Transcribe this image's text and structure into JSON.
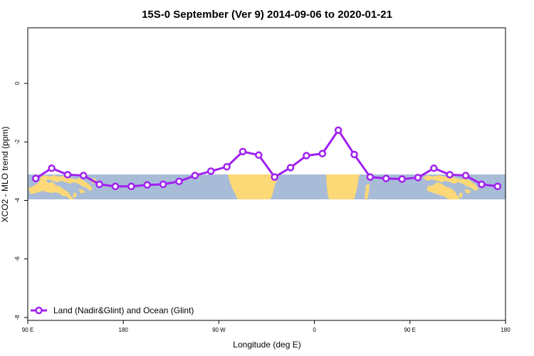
{
  "chart_data": {
    "type": "line",
    "title": "15S-0 September (Ver 9)   2014-09-06 to 2020-01-21",
    "xlabel": "Longitude (deg E)",
    "ylabel": "XCO2 - MLO trend (ppm)",
    "xlim": [
      90,
      540
    ],
    "ylim": [
      -8.1,
      1.9
    ],
    "x_ticks": [
      {
        "value": 90,
        "label": "90 E"
      },
      {
        "value": 180,
        "label": "180"
      },
      {
        "value": 270,
        "label": "90 W"
      },
      {
        "value": 360,
        "label": "0"
      },
      {
        "value": 450,
        "label": "90 E"
      },
      {
        "value": 540,
        "label": "180"
      }
    ],
    "y_ticks": [
      {
        "value": 0,
        "label": "0"
      },
      {
        "value": -2,
        "label": "-2"
      },
      {
        "value": -4,
        "label": "-4"
      },
      {
        "value": -6,
        "label": "-6"
      },
      {
        "value": -8,
        "label": "-8"
      }
    ],
    "grid": false,
    "background_map": {
      "lat_band": [
        -15,
        0
      ],
      "ocean_color": "#A8BCD8",
      "land_color": "#FCD877"
    },
    "legend": {
      "position": "bottom-left",
      "entries": [
        "Land (Nadir&Glint) and Ocean (Glint)"
      ]
    },
    "series": [
      {
        "name": "Land (Nadir&Glint) and Ocean (Glint)",
        "color": "#A020F0",
        "x": [
          97.5,
          112.5,
          127.5,
          142.5,
          157.5,
          172.5,
          187.5,
          202.5,
          217.5,
          232.5,
          247.5,
          262.5,
          277.5,
          292.5,
          307.5,
          322.5,
          337.5,
          352.5,
          367.5,
          382.5,
          397.5,
          412.5,
          427.5,
          442.5,
          457.5,
          472.5,
          487.5,
          502.5,
          517.5,
          532.5
        ],
        "y": [
          -3.25,
          -2.9,
          -3.12,
          -3.15,
          -3.45,
          -3.52,
          -3.52,
          -3.47,
          -3.45,
          -3.35,
          -3.15,
          -3.0,
          -2.85,
          -2.33,
          -2.45,
          -3.2,
          -2.88,
          -2.47,
          -2.4,
          -1.6,
          -2.43,
          -3.2,
          -3.25,
          -3.27,
          -3.22,
          -2.9,
          -3.12,
          -3.15,
          -3.45,
          -3.52
        ]
      }
    ]
  }
}
